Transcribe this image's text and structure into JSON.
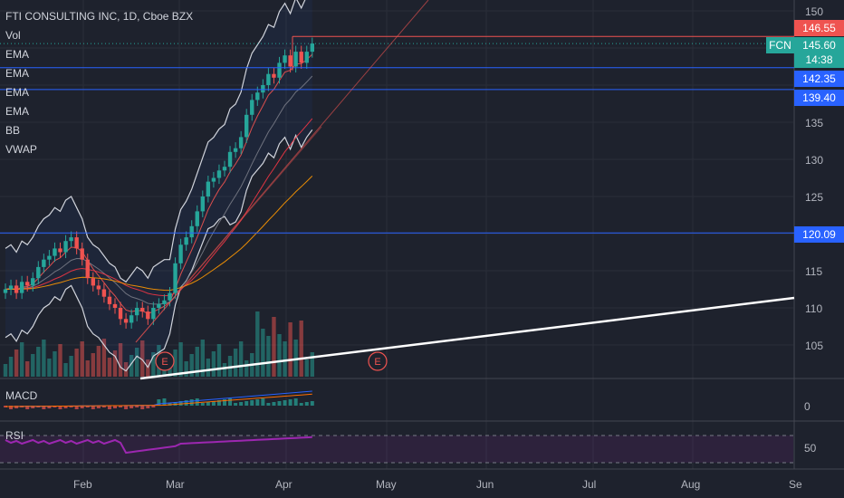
{
  "header": {
    "title": "FTI CONSULTING INC, 1D, Cboe BZX",
    "indicators": [
      "Vol",
      "EMA",
      "EMA",
      "EMA",
      "EMA",
      "BB",
      "VWAP"
    ]
  },
  "panes": {
    "macd_label": "MACD",
    "rsi_label": "RSI"
  },
  "price_axis": {
    "ticks": [
      "150",
      "135",
      "130",
      "125",
      "115",
      "110",
      "105"
    ],
    "macd_tick": "0",
    "rsi_tick": "50"
  },
  "time_axis": {
    "labels": [
      "Feb",
      "Mar",
      "Apr",
      "May",
      "Jun",
      "Jul",
      "Aug",
      "Se"
    ]
  },
  "price_tags": {
    "high": "146.55",
    "ticker": "FCN",
    "last": "145.60",
    "countdown": "14:38",
    "level1": "142.35",
    "level2": "139.40",
    "level3": "120.09"
  },
  "events": [
    "E",
    "E"
  ],
  "colors": {
    "background": "#1e222d",
    "up": "#26a69a",
    "down": "#ef5350",
    "level_line": "#2962ff",
    "rsi": "#9c27b0",
    "bb": "#d1d4dc"
  },
  "chart_data": {
    "type": "candlestick",
    "title": "FTI CONSULTING INC, 1D, Cboe BZX",
    "price_range": [
      101,
      151
    ],
    "horizontal_levels": [
      146.55,
      142.35,
      139.4,
      120.09
    ],
    "last_price": 145.6,
    "rsi_reference": 50
  }
}
